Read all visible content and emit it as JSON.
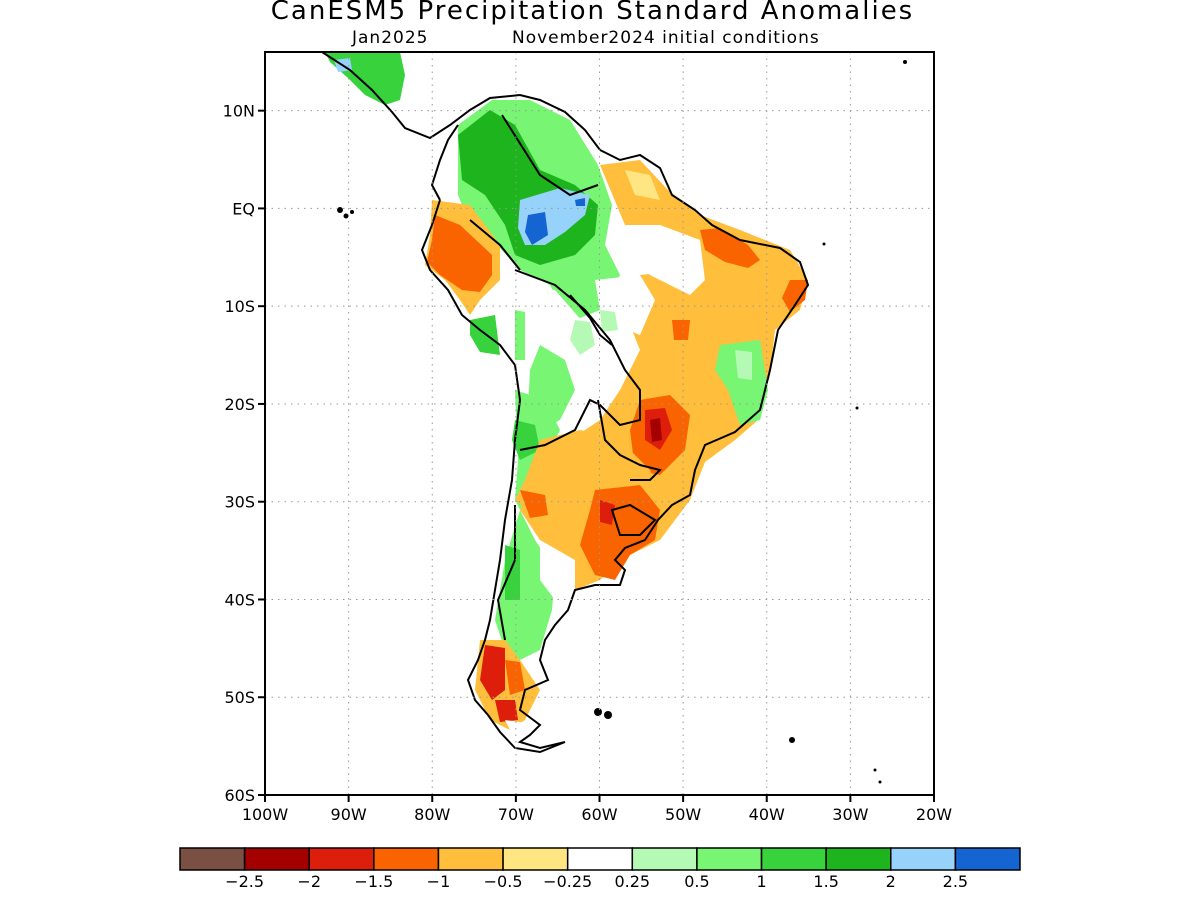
{
  "title": "CanESM5 Precipitation Standard Anomalies",
  "subtitle_left": "Jan2025",
  "subtitle_right": "November2024 initial conditions",
  "lat_ticks": [
    {
      "label": "10N",
      "lat": 10
    },
    {
      "label": "EQ",
      "lat": 0
    },
    {
      "label": "10S",
      "lat": -10
    },
    {
      "label": "20S",
      "lat": -20
    },
    {
      "label": "30S",
      "lat": -30
    },
    {
      "label": "40S",
      "lat": -40
    },
    {
      "label": "50S",
      "lat": -50
    },
    {
      "label": "60S",
      "lat": -60
    }
  ],
  "lon_ticks": [
    {
      "label": "100W",
      "lon": -100
    },
    {
      "label": "90W",
      "lon": -90
    },
    {
      "label": "80W",
      "lon": -80
    },
    {
      "label": "70W",
      "lon": -70
    },
    {
      "label": "60W",
      "lon": -60
    },
    {
      "label": "50W",
      "lon": -50
    },
    {
      "label": "40W",
      "lon": -40
    },
    {
      "label": "30W",
      "lon": -30
    },
    {
      "label": "20W",
      "lon": -20
    }
  ],
  "colorbar": {
    "colors": [
      "#7b5044",
      "#a50000",
      "#dc1e0a",
      "#fa6400",
      "#ffbe3c",
      "#ffe682",
      "#ffffff",
      "#b4fab4",
      "#78f573",
      "#37d23c",
      "#1eb41e",
      "#96d2fa",
      "#1464d2"
    ],
    "labels": [
      "−2.5",
      "−2",
      "−1.5",
      "−1",
      "−0.5",
      "−0.25",
      "0.25",
      "0.5",
      "1",
      "1.5",
      "2",
      "2.5"
    ]
  }
}
